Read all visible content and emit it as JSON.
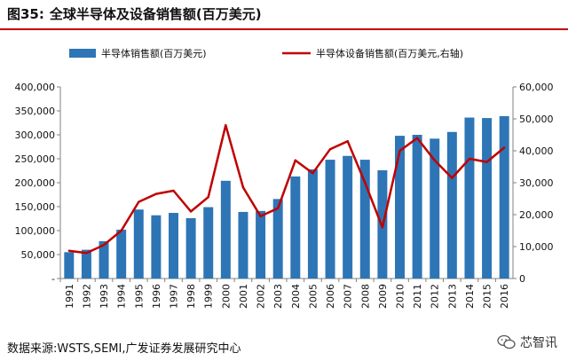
{
  "header": {
    "figure_label": "图35:",
    "title": "全球半导体及设备销售额(百万美元)"
  },
  "footer": {
    "source": "数据来源:WSTS,SEMI,广发证券发展研究中心"
  },
  "watermark": {
    "text": "芯智讯",
    "icon": "wechat-icon"
  },
  "colors": {
    "bar": "#2e75b6",
    "line": "#c00000",
    "rule": "#c00000"
  },
  "chart_data": {
    "type": "bar",
    "combo": "bar-line-dual-axis",
    "categories": [
      "1991",
      "1992",
      "1993",
      "1994",
      "1995",
      "1996",
      "1997",
      "1998",
      "1999",
      "2000",
      "2001",
      "2002",
      "2003",
      "2004",
      "2005",
      "2006",
      "2007",
      "2008",
      "2009",
      "2010",
      "2011",
      "2012",
      "2013",
      "2014",
      "2015",
      "2016"
    ],
    "series": [
      {
        "name": "半导体销售额(百万美元)",
        "type": "bar",
        "axis": "left",
        "values": [
          55000,
          60000,
          78000,
          102000,
          144000,
          132000,
          137000,
          126000,
          149000,
          204000,
          139000,
          141000,
          166000,
          213000,
          228000,
          248000,
          256000,
          248000,
          226000,
          298000,
          300000,
          292000,
          306000,
          336000,
          335000,
          339000
        ]
      },
      {
        "name": "半导体设备销售额(百万美元,右轴)",
        "type": "line",
        "axis": "right",
        "values": [
          8700,
          8000,
          10500,
          15000,
          24000,
          26500,
          27500,
          21000,
          25500,
          48000,
          28500,
          19500,
          22000,
          37000,
          33000,
          40500,
          43000,
          30000,
          16000,
          40000,
          44000,
          37000,
          31500,
          37500,
          36500,
          41000
        ]
      }
    ],
    "y_left": {
      "lim": [
        0,
        400000
      ],
      "ticks": [
        0,
        50000,
        100000,
        150000,
        200000,
        250000,
        300000,
        350000,
        400000
      ],
      "tick_labels": [
        "-",
        "50,000",
        "100,000",
        "150,000",
        "200,000",
        "250,000",
        "300,000",
        "350,000",
        "400,000"
      ]
    },
    "y_right": {
      "lim": [
        0,
        60000
      ],
      "ticks": [
        0,
        10000,
        20000,
        30000,
        40000,
        50000,
        60000
      ],
      "tick_labels": [
        "0",
        "10,000",
        "20,000",
        "30,000",
        "40,000",
        "50,000",
        "60,000"
      ]
    },
    "title": "",
    "xlabel": "",
    "ylabel": "",
    "legend_position": "top",
    "grid": false
  }
}
